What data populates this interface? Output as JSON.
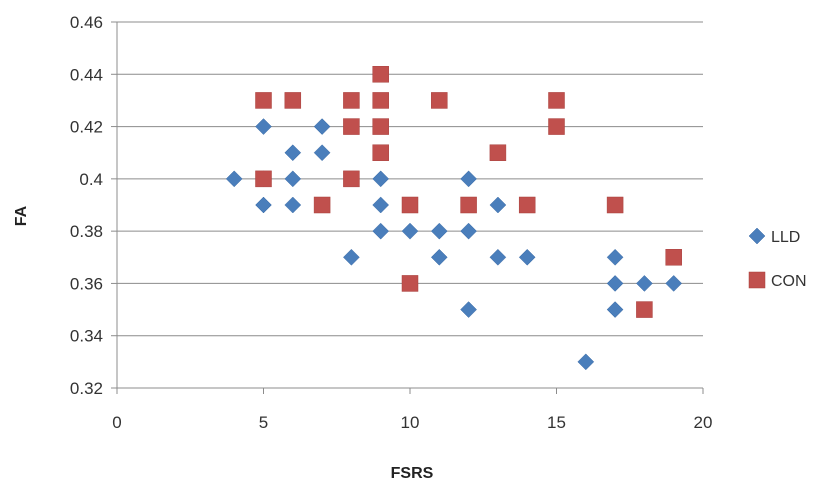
{
  "chart_data": {
    "type": "scatter",
    "title": "",
    "xlabel": "FSRS",
    "ylabel": "FA",
    "xlim": [
      0,
      20
    ],
    "ylim": [
      0.32,
      0.46
    ],
    "x_ticks": [
      0,
      5,
      10,
      15,
      20
    ],
    "y_ticks": [
      0.32,
      0.34,
      0.36,
      0.38,
      0.4,
      0.42,
      0.44,
      0.46
    ],
    "x_tick_labels": [
      "0",
      "5",
      "10",
      "15",
      "20"
    ],
    "y_tick_labels": [
      "0.32",
      "0.34",
      "0.36",
      "0.38",
      "0.4",
      "0.42",
      "0.44",
      "0.46"
    ],
    "grid": "horizontal",
    "legend_position": "right",
    "series": [
      {
        "name": "LLD",
        "marker": "diamond",
        "color": "#4a7ebb",
        "points": [
          [
            4,
            0.4
          ],
          [
            5,
            0.42
          ],
          [
            5,
            0.4
          ],
          [
            5,
            0.39
          ],
          [
            6,
            0.41
          ],
          [
            6,
            0.4
          ],
          [
            6,
            0.39
          ],
          [
            7,
            0.42
          ],
          [
            7,
            0.41
          ],
          [
            8,
            0.37
          ],
          [
            9,
            0.4
          ],
          [
            9,
            0.39
          ],
          [
            9,
            0.38
          ],
          [
            10,
            0.38
          ],
          [
            11,
            0.38
          ],
          [
            11,
            0.37
          ],
          [
            12,
            0.4
          ],
          [
            12,
            0.38
          ],
          [
            12,
            0.35
          ],
          [
            13,
            0.39
          ],
          [
            13,
            0.37
          ],
          [
            14,
            0.37
          ],
          [
            16,
            0.33
          ],
          [
            17,
            0.37
          ],
          [
            17,
            0.36
          ],
          [
            17,
            0.35
          ],
          [
            18,
            0.36
          ],
          [
            19,
            0.36
          ]
        ]
      },
      {
        "name": "CON",
        "marker": "square",
        "color": "#c0504d",
        "points": [
          [
            5,
            0.43
          ],
          [
            5,
            0.4
          ],
          [
            6,
            0.43
          ],
          [
            7,
            0.39
          ],
          [
            8,
            0.43
          ],
          [
            8,
            0.42
          ],
          [
            8,
            0.4
          ],
          [
            9,
            0.44
          ],
          [
            9,
            0.43
          ],
          [
            9,
            0.42
          ],
          [
            9,
            0.41
          ],
          [
            10,
            0.39
          ],
          [
            10,
            0.36
          ],
          [
            11,
            0.43
          ],
          [
            12,
            0.39
          ],
          [
            13,
            0.41
          ],
          [
            14,
            0.39
          ],
          [
            15,
            0.43
          ],
          [
            15,
            0.42
          ],
          [
            17,
            0.39
          ],
          [
            18,
            0.35
          ],
          [
            19,
            0.37
          ]
        ]
      }
    ]
  }
}
